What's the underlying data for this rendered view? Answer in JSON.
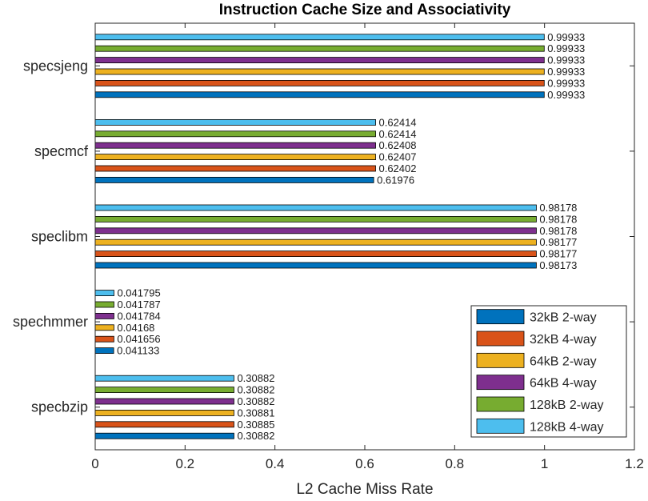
{
  "chart_data": {
    "type": "bar",
    "orientation": "horizontal",
    "title": "Instruction Cache Size and Associativity",
    "xlabel": "L2 Cache Miss Rate",
    "ylabel": "",
    "xlim": [
      0,
      1.2
    ],
    "xticks": [
      "0",
      "0.2",
      "0.4",
      "0.6",
      "0.8",
      "1",
      "1.2"
    ],
    "grid": false,
    "legend_position": "bottom-right",
    "categories": [
      "specsjeng",
      "specmcf",
      "speclibm",
      "spechmmer",
      "specbzip"
    ],
    "series": [
      {
        "name": "32kB 2-way",
        "color": "#0072BD",
        "values": [
          0.99933,
          0.61976,
          0.98173,
          0.041133,
          0.30882
        ],
        "labels": [
          "0.99933",
          "0.61976",
          "0.98173",
          "0.041133",
          "0.30882"
        ]
      },
      {
        "name": "32kB 4-way",
        "color": "#D95319",
        "values": [
          0.99933,
          0.62402,
          0.98177,
          0.041656,
          0.30885
        ],
        "labels": [
          "0.99933",
          "0.62402",
          "0.98177",
          "0.041656",
          "0.30885"
        ]
      },
      {
        "name": "64kB 2-way",
        "color": "#EDB120",
        "values": [
          0.99933,
          0.62407,
          0.98177,
          0.04168,
          0.30881
        ],
        "labels": [
          "0.99933",
          "0.62407",
          "0.98177",
          "0.04168",
          "0.30881"
        ]
      },
      {
        "name": "64kB 4-way",
        "color": "#7E2F8E",
        "values": [
          0.99933,
          0.62408,
          0.98178,
          0.041784,
          0.30882
        ],
        "labels": [
          "0.99933",
          "0.62408",
          "0.98178",
          "0.041784",
          "0.30882"
        ]
      },
      {
        "name": "128kB 2-way",
        "color": "#77AC30",
        "values": [
          0.99933,
          0.62414,
          0.98178,
          0.041787,
          0.30882
        ],
        "labels": [
          "0.99933",
          "0.62414",
          "0.98178",
          "0.041787",
          "0.30882"
        ]
      },
      {
        "name": "128kB 4-way",
        "color": "#4DBEEE",
        "values": [
          0.99933,
          0.62414,
          0.98178,
          0.041795,
          0.30882
        ],
        "labels": [
          "0.99933",
          "0.62414",
          "0.98178",
          "0.041795",
          "0.30882"
        ]
      }
    ]
  }
}
